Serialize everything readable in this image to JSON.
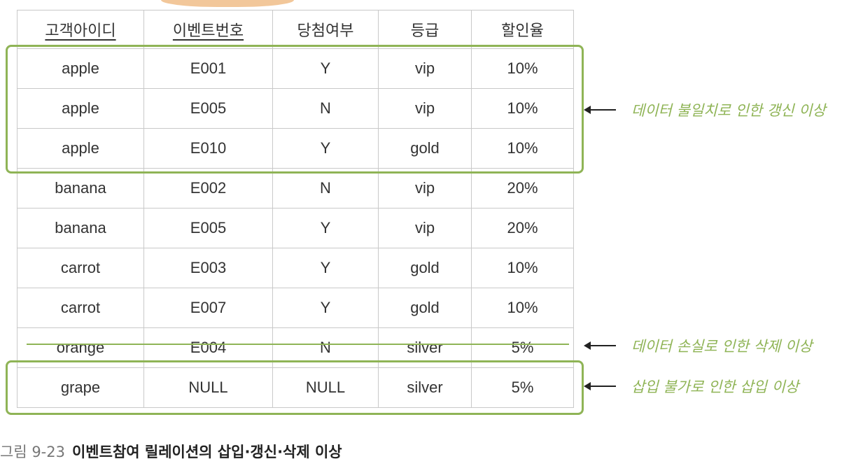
{
  "table": {
    "headers": [
      "고객아이디",
      "이벤트번호",
      "당첨여부",
      "등급",
      "할인율"
    ],
    "rows": [
      [
        "apple",
        "E001",
        "Y",
        "vip",
        "10%"
      ],
      [
        "apple",
        "E005",
        "N",
        "vip",
        "10%"
      ],
      [
        "apple",
        "E010",
        "Y",
        "gold",
        "10%"
      ],
      [
        "banana",
        "E002",
        "N",
        "vip",
        "20%"
      ],
      [
        "banana",
        "E005",
        "Y",
        "vip",
        "20%"
      ],
      [
        "carrot",
        "E003",
        "Y",
        "gold",
        "10%"
      ],
      [
        "carrot",
        "E007",
        "Y",
        "gold",
        "10%"
      ],
      [
        "orange",
        "E004",
        "N",
        "silver",
        "5%"
      ],
      [
        "grape",
        "NULL",
        "NULL",
        "silver",
        "5%"
      ]
    ]
  },
  "annotations": {
    "update": "데이터 불일치로 인한 갱신 이상",
    "delete": "데이터 손실로 인한 삭제 이상",
    "insert": "삽입 불가로 인한 삽입 이상"
  },
  "caption": {
    "number": "그림 9-23",
    "title": "이벤트참여 릴레이션의 삽입·갱신·삭제 이상"
  },
  "colors": {
    "highlight": "#8fb456",
    "arrow_top": "#f2c79a"
  }
}
